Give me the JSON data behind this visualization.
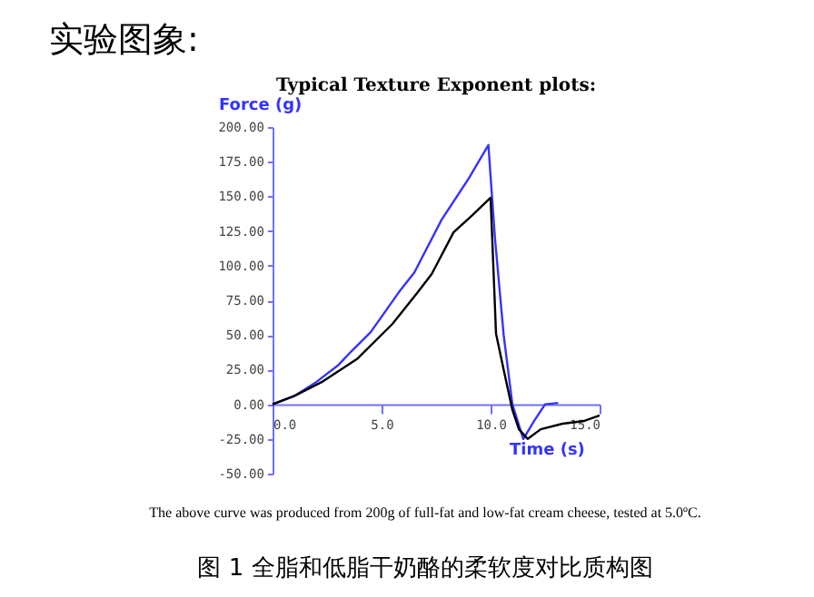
{
  "chart_data": {
    "type": "line",
    "title": "Typical Texture Exponent plots:",
    "xlabel": "Time  (s)",
    "ylabel": "Force (g)",
    "annotations": [
      "实验图象:",
      "The above curve was produced from 200g of full-fat and low-fat cream cheese, tested at 5.0ºC.",
      "图 1  全脂和低脂干奶酪的柔软度对比质构图"
    ],
    "series": [
      {
        "color": "#3333ff",
        "x": [
          0,
          1,
          2,
          3,
          3.6,
          4.5,
          5.8,
          6.5,
          7.75,
          9,
          9.9,
          10.2,
          10.6,
          11,
          11.5,
          12,
          12.5,
          13.1
        ],
        "values": [
          0,
          6,
          16,
          28,
          38,
          52,
          81,
          95,
          133,
          163,
          187,
          120,
          50,
          0,
          -25,
          -12,
          0,
          1
        ]
      },
      {
        "color": "#000000",
        "x": [
          0,
          1,
          2.25,
          3.9,
          5.5,
          6.67,
          7.3,
          8.3,
          9.2,
          10,
          10.1,
          10.25,
          10.6,
          11,
          11.3,
          11.7,
          12.3,
          13.3,
          14.3,
          15
        ],
        "values": [
          0,
          6,
          16,
          33,
          58,
          81,
          94,
          124,
          137,
          149,
          110,
          51,
          25,
          -4,
          -18,
          -25,
          -18,
          -14,
          -12,
          -8
        ]
      }
    ],
    "xlim": [
      0,
      15
    ],
    "xticks": [
      {
        "value": 0,
        "label": "0.0"
      },
      {
        "value": 5,
        "label": "5.0"
      },
      {
        "value": 10,
        "label": "10.0"
      },
      {
        "value": 15,
        "label": "15.0"
      }
    ],
    "ylim": [
      -50,
      200
    ],
    "yticks": [
      {
        "value": -50,
        "label": "-50.00"
      },
      {
        "value": -25,
        "label": "-25.00"
      },
      {
        "value": 0,
        "label": "0.00"
      },
      {
        "value": 25,
        "label": "25.00"
      },
      {
        "value": 50,
        "label": "50.00"
      },
      {
        "value": 75,
        "label": "75.00"
      },
      {
        "value": 100,
        "label": "100.00"
      },
      {
        "value": 125,
        "label": "125.00"
      },
      {
        "value": 150,
        "label": "150.00"
      },
      {
        "value": 175,
        "label": "175.00"
      },
      {
        "value": 200,
        "label": "200.00"
      }
    ],
    "grid": false
  }
}
